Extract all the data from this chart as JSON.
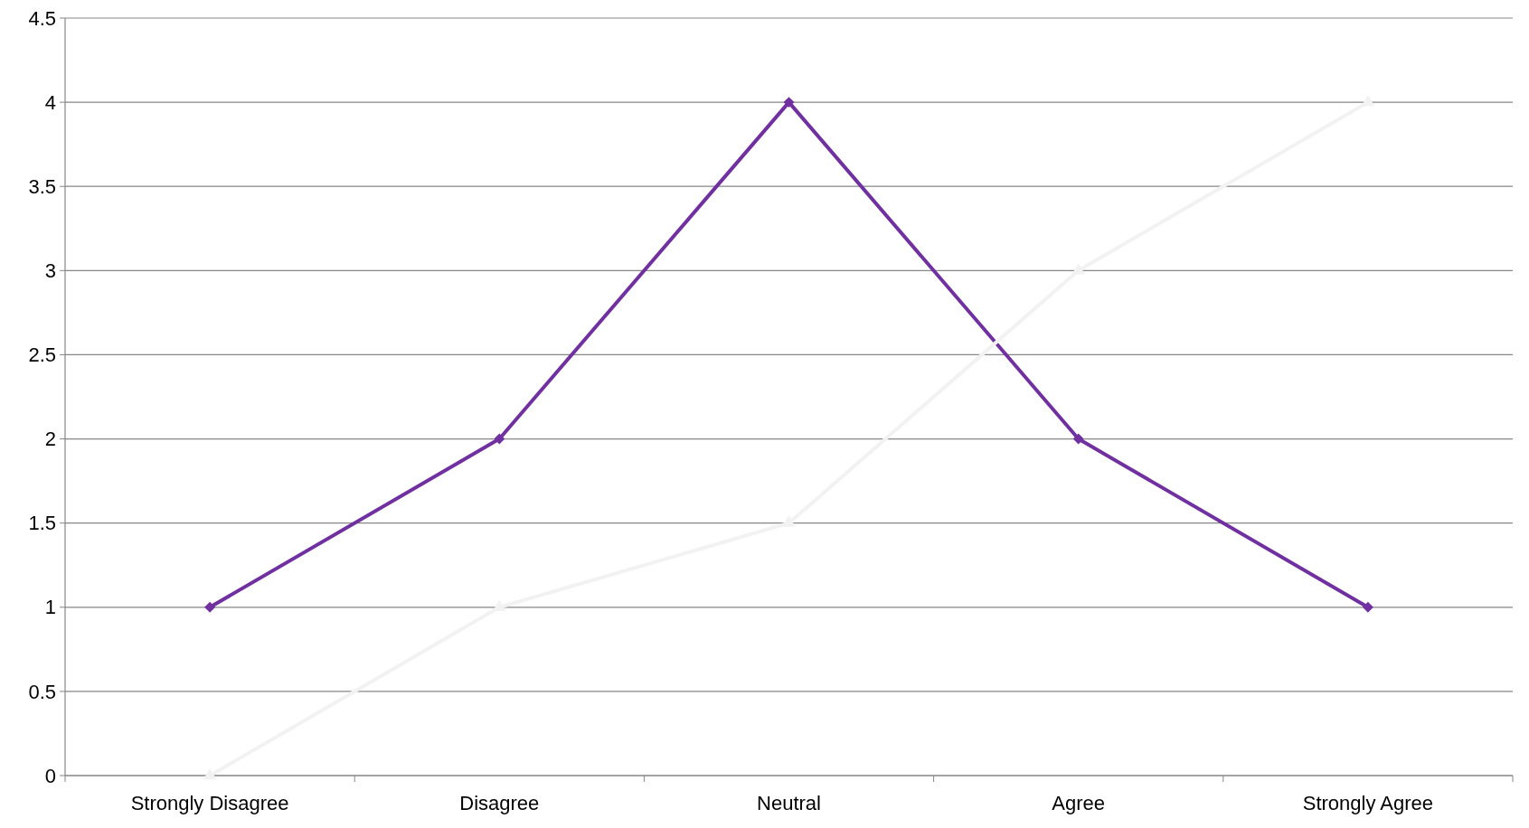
{
  "chart_data": {
    "type": "line",
    "categories": [
      "Strongly Disagree",
      "Disagree",
      "Neutral",
      "Agree",
      "Strongly Agree"
    ],
    "series": [
      {
        "color": "#7030a0",
        "values": [
          1,
          2,
          4,
          2,
          1
        ],
        "marker": "diamond"
      },
      {
        "color": "#f2f2f2",
        "values": [
          0,
          1,
          1.5,
          3,
          4
        ],
        "marker": "triangle"
      }
    ],
    "ylim": [
      0,
      4.5
    ],
    "yticks": [
      0,
      0.5,
      1,
      1.5,
      2,
      2.5,
      3,
      3.5,
      4,
      4.5
    ],
    "grid": "y",
    "line_style": "solid"
  }
}
